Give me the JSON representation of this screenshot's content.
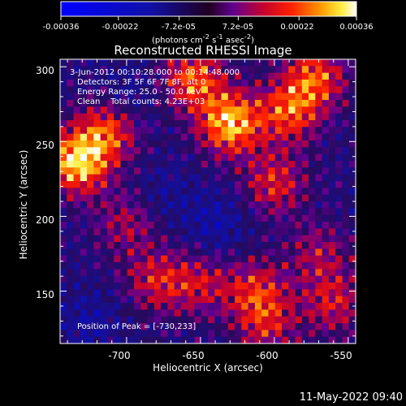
{
  "chart_data": {
    "type": "heatmap",
    "title": "Reconstructed RHESSI Image",
    "xlabel": "Heliocentric X (arcsec)",
    "ylabel": "Heliocentric Y (arcsec)",
    "xlim": [
      -745,
      -545
    ],
    "ylim": [
      115,
      305
    ],
    "x_ticks": [
      -700,
      -650,
      -600,
      -550
    ],
    "y_ticks": [
      150,
      200,
      250,
      300
    ],
    "colorbar": {
      "label_prefix": "(photons cm",
      "label_middle": " s",
      "label_end": " asec",
      "label_close": ")",
      "exp_cm": "-2",
      "exp_s": "-1",
      "exp_asec": "-2",
      "range": [
        -0.00036,
        0.00036
      ],
      "ticks": [
        "-0.00036",
        "-0.00022",
        "-7.2e-05",
        "7.2e-05",
        "0.00022",
        "0.00036"
      ],
      "tick_values": [
        -0.00036,
        -0.00022,
        -7.2e-05,
        7.2e-05,
        0.00022,
        0.00036
      ]
    },
    "annotations": {
      "line1": "3-Jun-2012 00:10:28.000 to 00:14:48.000",
      "line2": "Detectors: 3F 5F 6F 7F 8F, att 0",
      "line3": "Energy Range: 25.0 - 50.0 keV",
      "line4": "Clean    Total counts: 4.23E+03",
      "peak": "Position of Peak = [-730,233]"
    },
    "peak": [
      -730,
      233
    ],
    "bright_regions": [
      {
        "x": -733,
        "y": 236,
        "v": 0.00036
      },
      {
        "x": -712,
        "y": 258,
        "v": 0.00024
      },
      {
        "x": -630,
        "y": 262,
        "v": 0.00034
      },
      {
        "x": -655,
        "y": 292,
        "v": 0.00026
      },
      {
        "x": -590,
        "y": 270,
        "v": 0.00024
      },
      {
        "x": -572,
        "y": 293,
        "v": 0.00024
      },
      {
        "x": -600,
        "y": 222,
        "v": 0.0002
      },
      {
        "x": -680,
        "y": 157,
        "v": 0.00018
      },
      {
        "x": -650,
        "y": 155,
        "v": 0.00016
      },
      {
        "x": -612,
        "y": 150,
        "v": 0.0002
      },
      {
        "x": -560,
        "y": 142,
        "v": 0.00018
      },
      {
        "x": -605,
        "y": 126,
        "v": 0.00016
      },
      {
        "x": -700,
        "y": 195,
        "v": 0.00014
      },
      {
        "x": -570,
        "y": 175,
        "v": 0.00014
      }
    ],
    "dim_regions": [
      {
        "x": -640,
        "y": 195,
        "v": -0.0001
      },
      {
        "x": -700,
        "y": 278,
        "v": -8e-05
      },
      {
        "x": -725,
        "y": 130,
        "v": -8e-05
      },
      {
        "x": -675,
        "y": 215,
        "v": -6e-05
      }
    ]
  },
  "footer": {
    "date": "11-May-2022 09:40"
  }
}
